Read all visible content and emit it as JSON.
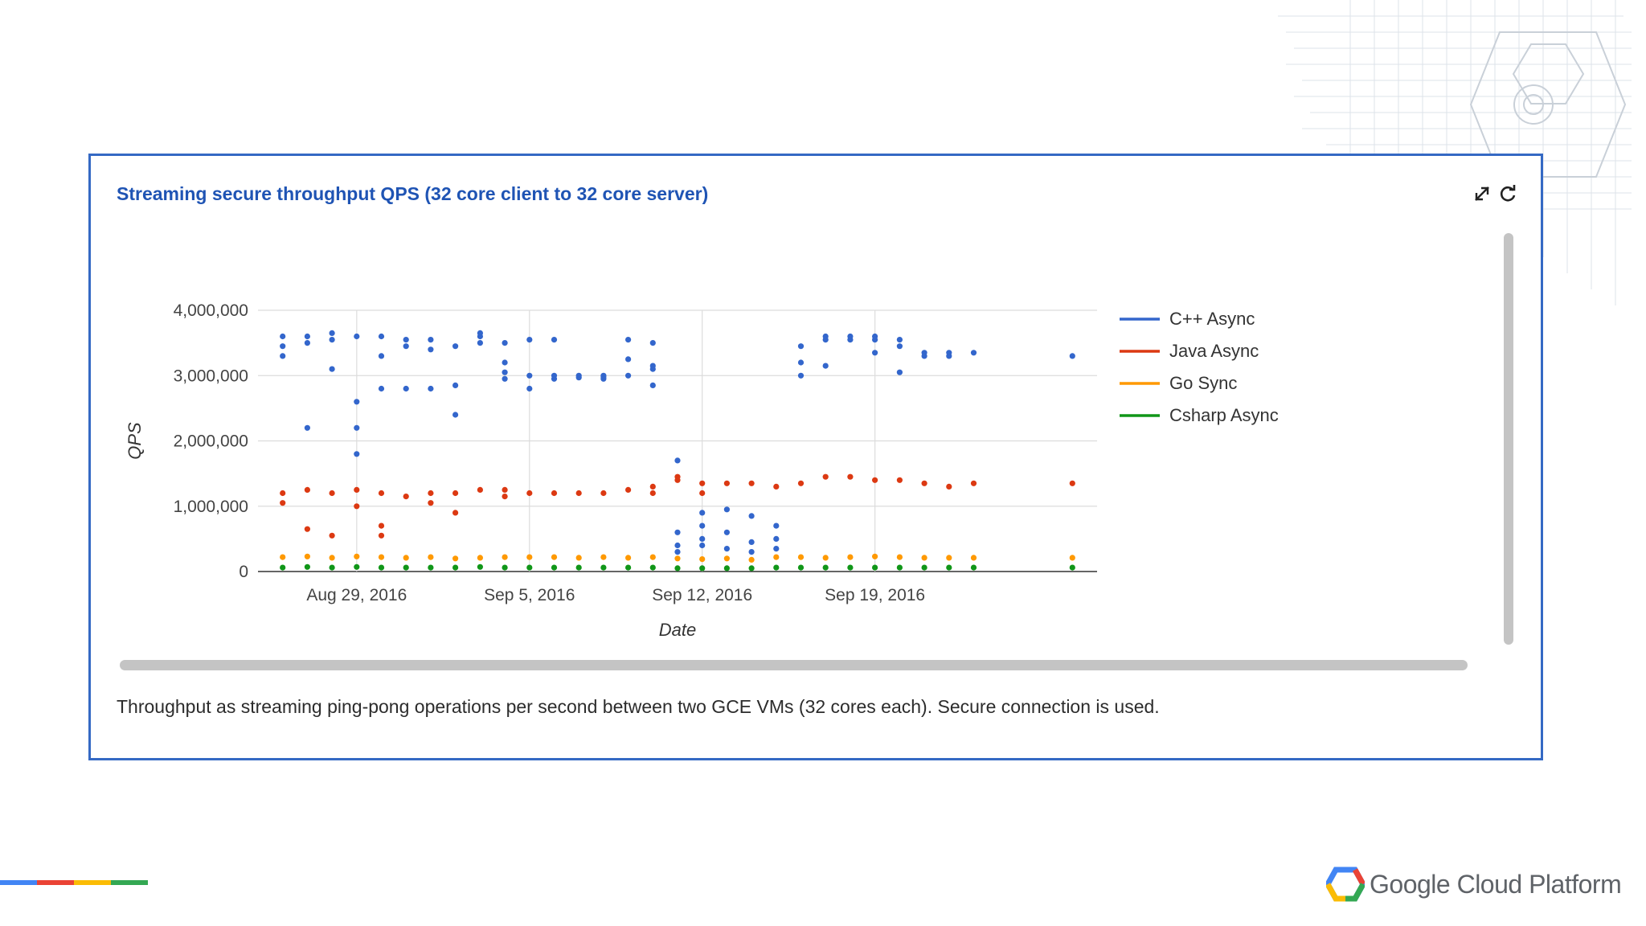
{
  "card": {
    "title": "Streaming secure throughput QPS (32 core client to 32 core server)",
    "caption": "Throughput as streaming ping-pong operations per second between two GCE VMs (32 cores each). Secure connection is used.",
    "border_color": "#3569c4"
  },
  "toolbar": {
    "collapse_icon": "collapse-icon",
    "refresh_icon": "refresh-icon"
  },
  "footer": {
    "brand": "Google Cloud Platform",
    "logo_icon": "gcp-hexagon-icon",
    "stripe_colors": [
      "#4285f4",
      "#ea4335",
      "#fbbc05",
      "#34a853"
    ]
  },
  "chart_data": {
    "type": "scatter",
    "title": "",
    "xlabel": "Date",
    "ylabel": "QPS",
    "ylim": [
      0,
      4000000
    ],
    "yticks": [
      0,
      1000000,
      2000000,
      3000000,
      4000000
    ],
    "ytick_labels": [
      "0",
      "1,000,000",
      "2,000,000",
      "3,000,000",
      "4,000,000"
    ],
    "xlim": [
      "2016-08-25",
      "2016-09-28"
    ],
    "xticks": [
      "2016-08-29",
      "2016-09-05",
      "2016-09-12",
      "2016-09-19"
    ],
    "xtick_labels": [
      "Aug 29, 2016",
      "Sep 5, 2016",
      "Sep 12, 2016",
      "Sep 19, 2016"
    ],
    "grid": true,
    "legend_position": "right",
    "series": [
      {
        "name": "C++ Async",
        "color": "#3366cc",
        "points": [
          [
            "2016-08-26",
            3450000
          ],
          [
            "2016-08-26",
            3300000
          ],
          [
            "2016-08-26",
            3600000
          ],
          [
            "2016-08-27",
            2200000
          ],
          [
            "2016-08-27",
            3500000
          ],
          [
            "2016-08-27",
            3600000
          ],
          [
            "2016-08-28",
            3100000
          ],
          [
            "2016-08-28",
            3550000
          ],
          [
            "2016-08-28",
            3650000
          ],
          [
            "2016-08-29",
            2600000
          ],
          [
            "2016-08-29",
            1800000
          ],
          [
            "2016-08-29",
            2200000
          ],
          [
            "2016-08-29",
            3600000
          ],
          [
            "2016-08-30",
            3600000
          ],
          [
            "2016-08-30",
            2800000
          ],
          [
            "2016-08-30",
            3300000
          ],
          [
            "2016-08-31",
            3550000
          ],
          [
            "2016-08-31",
            3450000
          ],
          [
            "2016-08-31",
            2800000
          ],
          [
            "2016-09-01",
            3400000
          ],
          [
            "2016-09-01",
            2800000
          ],
          [
            "2016-09-01",
            3550000
          ],
          [
            "2016-09-02",
            2400000
          ],
          [
            "2016-09-02",
            3450000
          ],
          [
            "2016-09-02",
            2850000
          ],
          [
            "2016-09-03",
            3500000
          ],
          [
            "2016-09-03",
            3600000
          ],
          [
            "2016-09-03",
            3650000
          ],
          [
            "2016-09-04",
            3200000
          ],
          [
            "2016-09-04",
            2950000
          ],
          [
            "2016-09-04",
            3500000
          ],
          [
            "2016-09-04",
            3050000
          ],
          [
            "2016-09-05",
            2800000
          ],
          [
            "2016-09-05",
            3000000
          ],
          [
            "2016-09-05",
            3550000
          ],
          [
            "2016-09-06",
            3000000
          ],
          [
            "2016-09-06",
            2950000
          ],
          [
            "2016-09-06",
            3550000
          ],
          [
            "2016-09-07",
            2970000
          ],
          [
            "2016-09-07",
            3000000
          ],
          [
            "2016-09-08",
            2980000
          ],
          [
            "2016-09-08",
            3000000
          ],
          [
            "2016-09-08",
            2950000
          ],
          [
            "2016-09-09",
            3250000
          ],
          [
            "2016-09-09",
            3550000
          ],
          [
            "2016-09-09",
            3000000
          ],
          [
            "2016-09-10",
            3100000
          ],
          [
            "2016-09-10",
            3500000
          ],
          [
            "2016-09-10",
            2850000
          ],
          [
            "2016-09-10",
            3150000
          ],
          [
            "2016-09-11",
            400000
          ],
          [
            "2016-09-11",
            600000
          ],
          [
            "2016-09-11",
            1700000
          ],
          [
            "2016-09-11",
            300000
          ],
          [
            "2016-09-12",
            500000
          ],
          [
            "2016-09-12",
            900000
          ],
          [
            "2016-09-12",
            400000
          ],
          [
            "2016-09-12",
            700000
          ],
          [
            "2016-09-13",
            350000
          ],
          [
            "2016-09-13",
            600000
          ],
          [
            "2016-09-13",
            950000
          ],
          [
            "2016-09-14",
            450000
          ],
          [
            "2016-09-14",
            850000
          ],
          [
            "2016-09-14",
            300000
          ],
          [
            "2016-09-15",
            700000
          ],
          [
            "2016-09-15",
            500000
          ],
          [
            "2016-09-15",
            350000
          ],
          [
            "2016-09-16",
            3450000
          ],
          [
            "2016-09-16",
            3000000
          ],
          [
            "2016-09-16",
            3200000
          ],
          [
            "2016-09-17",
            3550000
          ],
          [
            "2016-09-17",
            3600000
          ],
          [
            "2016-09-17",
            3150000
          ],
          [
            "2016-09-18",
            3550000
          ],
          [
            "2016-09-18",
            3600000
          ],
          [
            "2016-09-19",
            3550000
          ],
          [
            "2016-09-19",
            3600000
          ],
          [
            "2016-09-19",
            3350000
          ],
          [
            "2016-09-20",
            3550000
          ],
          [
            "2016-09-20",
            3050000
          ],
          [
            "2016-09-20",
            3450000
          ],
          [
            "2016-09-21",
            3350000
          ],
          [
            "2016-09-21",
            3300000
          ],
          [
            "2016-09-22",
            3300000
          ],
          [
            "2016-09-22",
            3350000
          ],
          [
            "2016-09-23",
            3350000
          ],
          [
            "2016-09-27",
            3300000
          ]
        ]
      },
      {
        "name": "Java Async",
        "color": "#dc3912",
        "points": [
          [
            "2016-08-26",
            1200000
          ],
          [
            "2016-08-26",
            1050000
          ],
          [
            "2016-08-27",
            1250000
          ],
          [
            "2016-08-27",
            650000
          ],
          [
            "2016-08-28",
            1200000
          ],
          [
            "2016-08-28",
            550000
          ],
          [
            "2016-08-29",
            1250000
          ],
          [
            "2016-08-29",
            1000000
          ],
          [
            "2016-08-30",
            1200000
          ],
          [
            "2016-08-30",
            550000
          ],
          [
            "2016-08-30",
            700000
          ],
          [
            "2016-08-31",
            1150000
          ],
          [
            "2016-09-01",
            1200000
          ],
          [
            "2016-09-01",
            1050000
          ],
          [
            "2016-09-02",
            1200000
          ],
          [
            "2016-09-02",
            900000
          ],
          [
            "2016-09-03",
            1250000
          ],
          [
            "2016-09-04",
            1250000
          ],
          [
            "2016-09-04",
            1150000
          ],
          [
            "2016-09-05",
            1200000
          ],
          [
            "2016-09-06",
            1200000
          ],
          [
            "2016-09-07",
            1200000
          ],
          [
            "2016-09-08",
            1200000
          ],
          [
            "2016-09-09",
            1250000
          ],
          [
            "2016-09-10",
            1200000
          ],
          [
            "2016-09-10",
            1300000
          ],
          [
            "2016-09-11",
            1450000
          ],
          [
            "2016-09-11",
            1400000
          ],
          [
            "2016-09-12",
            1200000
          ],
          [
            "2016-09-12",
            1350000
          ],
          [
            "2016-09-13",
            1350000
          ],
          [
            "2016-09-14",
            1350000
          ],
          [
            "2016-09-15",
            1300000
          ],
          [
            "2016-09-16",
            1350000
          ],
          [
            "2016-09-17",
            1450000
          ],
          [
            "2016-09-18",
            1450000
          ],
          [
            "2016-09-19",
            1400000
          ],
          [
            "2016-09-20",
            1400000
          ],
          [
            "2016-09-21",
            1350000
          ],
          [
            "2016-09-22",
            1300000
          ],
          [
            "2016-09-23",
            1350000
          ],
          [
            "2016-09-27",
            1350000
          ]
        ]
      },
      {
        "name": "Go Sync",
        "color": "#ff9900",
        "points": [
          [
            "2016-08-26",
            220000
          ],
          [
            "2016-08-27",
            230000
          ],
          [
            "2016-08-28",
            210000
          ],
          [
            "2016-08-29",
            230000
          ],
          [
            "2016-08-30",
            220000
          ],
          [
            "2016-08-31",
            210000
          ],
          [
            "2016-09-01",
            220000
          ],
          [
            "2016-09-02",
            200000
          ],
          [
            "2016-09-03",
            210000
          ],
          [
            "2016-09-04",
            220000
          ],
          [
            "2016-09-05",
            220000
          ],
          [
            "2016-09-06",
            220000
          ],
          [
            "2016-09-07",
            210000
          ],
          [
            "2016-09-08",
            220000
          ],
          [
            "2016-09-09",
            210000
          ],
          [
            "2016-09-10",
            220000
          ],
          [
            "2016-09-11",
            200000
          ],
          [
            "2016-09-12",
            190000
          ],
          [
            "2016-09-13",
            200000
          ],
          [
            "2016-09-14",
            180000
          ],
          [
            "2016-09-15",
            220000
          ],
          [
            "2016-09-16",
            220000
          ],
          [
            "2016-09-17",
            210000
          ],
          [
            "2016-09-18",
            220000
          ],
          [
            "2016-09-19",
            230000
          ],
          [
            "2016-09-20",
            220000
          ],
          [
            "2016-09-21",
            210000
          ],
          [
            "2016-09-22",
            210000
          ],
          [
            "2016-09-23",
            210000
          ],
          [
            "2016-09-27",
            210000
          ]
        ]
      },
      {
        "name": "Csharp Async",
        "color": "#109618",
        "points": [
          [
            "2016-08-26",
            60000
          ],
          [
            "2016-08-27",
            70000
          ],
          [
            "2016-08-28",
            60000
          ],
          [
            "2016-08-29",
            70000
          ],
          [
            "2016-08-30",
            60000
          ],
          [
            "2016-08-31",
            60000
          ],
          [
            "2016-09-01",
            60000
          ],
          [
            "2016-09-02",
            60000
          ],
          [
            "2016-09-03",
            70000
          ],
          [
            "2016-09-04",
            60000
          ],
          [
            "2016-09-05",
            60000
          ],
          [
            "2016-09-06",
            60000
          ],
          [
            "2016-09-07",
            60000
          ],
          [
            "2016-09-08",
            60000
          ],
          [
            "2016-09-09",
            60000
          ],
          [
            "2016-09-10",
            60000
          ],
          [
            "2016-09-11",
            50000
          ],
          [
            "2016-09-12",
            50000
          ],
          [
            "2016-09-13",
            50000
          ],
          [
            "2016-09-14",
            50000
          ],
          [
            "2016-09-15",
            60000
          ],
          [
            "2016-09-16",
            60000
          ],
          [
            "2016-09-17",
            60000
          ],
          [
            "2016-09-18",
            60000
          ],
          [
            "2016-09-19",
            60000
          ],
          [
            "2016-09-20",
            60000
          ],
          [
            "2016-09-21",
            60000
          ],
          [
            "2016-09-22",
            60000
          ],
          [
            "2016-09-23",
            60000
          ],
          [
            "2016-09-27",
            60000
          ]
        ]
      }
    ]
  }
}
